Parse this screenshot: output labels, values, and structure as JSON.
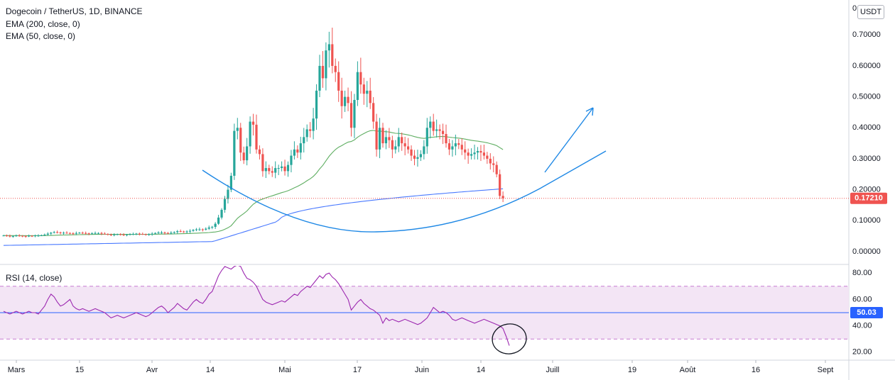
{
  "header": {
    "symbol_title": "Dogecoin / TetherUS, 1D, BINANCE",
    "ema200_label": "EMA (200, close, 0)",
    "ema50_label": "EMA (50, close, 0)",
    "rsi_label": "RSI (14, close)",
    "currency": "USDT",
    "top_axis_label": "0"
  },
  "colors": {
    "up": "#26a69a",
    "down": "#ef5350",
    "ema200": "#2962ff",
    "ema50": "#43a047",
    "rsi_line": "#9c27b0",
    "rsi_band": "#f3e5f5",
    "drawing": "#1e88e5",
    "price_tag": "#ef5350",
    "rsi_tag": "#2962ff"
  },
  "chart_data": [
    {
      "type": "candlestick",
      "panel": "price",
      "ylim": [
        -0.03,
        0.79
      ],
      "y_ticks": [
        {
          "v": 0.7,
          "label": "0.70000"
        },
        {
          "v": 0.6,
          "label": "0.60000"
        },
        {
          "v": 0.5,
          "label": "0.50000"
        },
        {
          "v": 0.4,
          "label": "0.40000"
        },
        {
          "v": 0.3,
          "label": "0.30000"
        },
        {
          "v": 0.2,
          "label": "0.20000"
        },
        {
          "v": 0.1,
          "label": "0.10000"
        },
        {
          "v": 0.0,
          "label": "0.00000"
        }
      ],
      "x_ticks": [
        "Mars",
        "15",
        "Avr",
        "14",
        "Mai",
        "17",
        "Juin",
        "14",
        "Juill",
        "19",
        "Août",
        "16",
        "Sept"
      ],
      "last_price": {
        "value": 0.1721,
        "label": "0.17210"
      },
      "closes": [
        0.052,
        0.051,
        0.049,
        0.05,
        0.052,
        0.051,
        0.05,
        0.049,
        0.051,
        0.05,
        0.052,
        0.052,
        0.053,
        0.055,
        0.058,
        0.061,
        0.063,
        0.062,
        0.06,
        0.061,
        0.06,
        0.059,
        0.058,
        0.06,
        0.061,
        0.06,
        0.059,
        0.058,
        0.059,
        0.06,
        0.06,
        0.058,
        0.057,
        0.055,
        0.054,
        0.055,
        0.056,
        0.055,
        0.054,
        0.055,
        0.056,
        0.057,
        0.058,
        0.057,
        0.056,
        0.055,
        0.056,
        0.058,
        0.06,
        0.062,
        0.062,
        0.06,
        0.059,
        0.061,
        0.063,
        0.066,
        0.065,
        0.064,
        0.065,
        0.067,
        0.07,
        0.072,
        0.072,
        0.071,
        0.074,
        0.078,
        0.08,
        0.09,
        0.11,
        0.135,
        0.17,
        0.2,
        0.245,
        0.39,
        0.4,
        0.32,
        0.295,
        0.34,
        0.42,
        0.41,
        0.33,
        0.315,
        0.26,
        0.27,
        0.26,
        0.255,
        0.27,
        0.27,
        0.275,
        0.26,
        0.28,
        0.31,
        0.33,
        0.32,
        0.35,
        0.37,
        0.395,
        0.39,
        0.43,
        0.52,
        0.6,
        0.56,
        0.65,
        0.67,
        0.6,
        0.58,
        0.52,
        0.47,
        0.5,
        0.48,
        0.4,
        0.49,
        0.58,
        0.54,
        0.51,
        0.52,
        0.48,
        0.42,
        0.33,
        0.4,
        0.35,
        0.37,
        0.36,
        0.33,
        0.34,
        0.37,
        0.35,
        0.34,
        0.33,
        0.31,
        0.3,
        0.305,
        0.315,
        0.34,
        0.4,
        0.42,
        0.39,
        0.395,
        0.39,
        0.38,
        0.35,
        0.33,
        0.34,
        0.35,
        0.345,
        0.33,
        0.32,
        0.31,
        0.315,
        0.32,
        0.325,
        0.32,
        0.31,
        0.3,
        0.285,
        0.28,
        0.25,
        0.18,
        0.172
      ],
      "series": [
        {
          "name": "EMA (200, close, 0)",
          "values": [
            0.02,
            0.035,
            0.05,
            0.1,
            0.14,
            0.18,
            0.2,
            0.2
          ]
        },
        {
          "name": "EMA (50, close, 0)",
          "values": [
            0.04,
            0.09,
            0.19,
            0.3,
            0.35,
            0.35,
            0.32
          ]
        }
      ],
      "annotations": [
        {
          "type": "curve",
          "description": "hand-drawn U-shaped arc"
        },
        {
          "type": "arrow",
          "description": "upward arrow"
        }
      ]
    },
    {
      "type": "line",
      "panel": "rsi",
      "name": "RSI (14, close)",
      "ylim": [
        14,
        86
      ],
      "y_ticks": [
        {
          "v": 80,
          "label": "80.00"
        },
        {
          "v": 60,
          "label": "60.00"
        },
        {
          "v": 40,
          "label": "40.00"
        },
        {
          "v": 20,
          "label": "20.00"
        }
      ],
      "bands": [
        30,
        70
      ],
      "midline": {
        "value": 50.03,
        "label": "50.03"
      },
      "values": [
        51,
        50,
        49,
        50,
        51,
        50,
        49,
        50,
        51,
        50,
        50,
        49,
        52,
        55,
        60,
        64,
        62,
        58,
        55,
        56,
        58,
        60,
        55,
        53,
        52,
        53,
        52,
        51,
        52,
        53,
        52,
        51,
        50,
        48,
        46,
        47,
        48,
        47,
        46,
        47,
        48,
        49,
        50,
        49,
        48,
        47,
        48,
        50,
        52,
        54,
        55,
        53,
        50,
        52,
        54,
        57,
        55,
        53,
        52,
        55,
        58,
        60,
        58,
        57,
        60,
        64,
        66,
        72,
        78,
        82,
        85,
        84,
        83,
        85,
        86,
        85,
        80,
        76,
        75,
        73,
        70,
        65,
        60,
        58,
        57,
        56,
        57,
        58,
        59,
        58,
        60,
        62,
        64,
        63,
        66,
        68,
        70,
        69,
        72,
        75,
        78,
        76,
        79,
        80,
        77,
        75,
        72,
        68,
        64,
        60,
        52,
        55,
        58,
        60,
        57,
        55,
        53,
        52,
        50,
        48,
        42,
        46,
        44,
        45,
        44,
        43,
        44,
        45,
        44,
        43,
        42,
        41,
        42,
        44,
        46,
        50,
        54,
        52,
        50,
        51,
        50,
        48,
        45,
        44,
        45,
        46,
        45,
        44,
        43,
        42,
        43,
        44,
        45,
        44,
        43,
        42,
        41,
        40,
        38,
        32,
        25
      ]
    }
  ]
}
